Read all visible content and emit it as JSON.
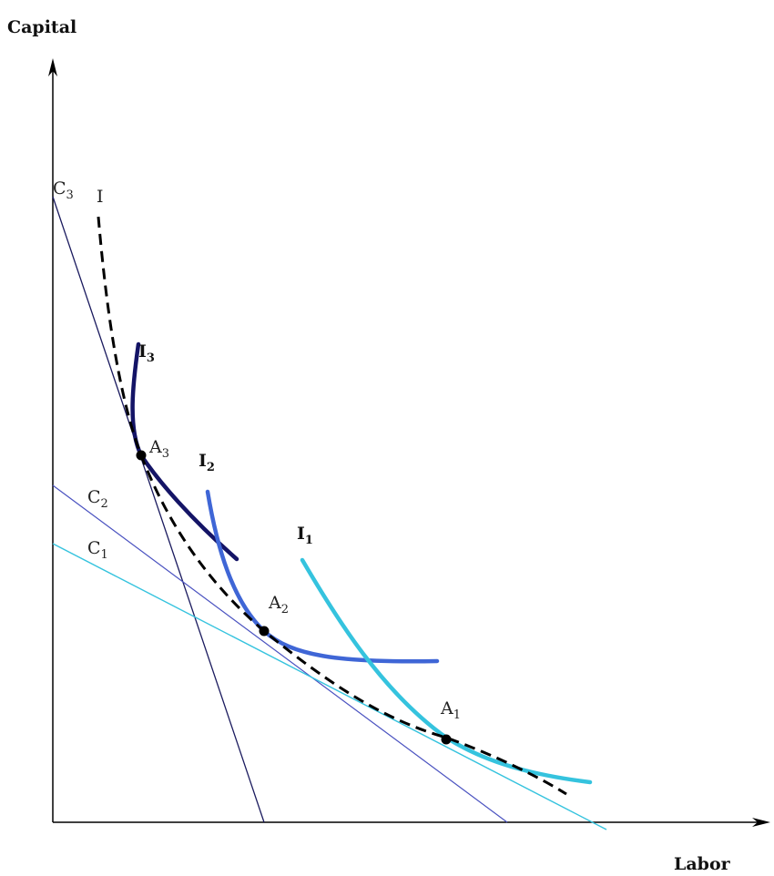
{
  "axes": {
    "y_title": "Capital",
    "x_title": "Labor"
  },
  "isocost_lines": [
    {
      "id": "c3",
      "label": "C",
      "sub": "3",
      "color": "#1a1a5e"
    },
    {
      "id": "c2",
      "label": "C",
      "sub": "2",
      "color": "#4a52c0"
    },
    {
      "id": "c1",
      "label": "C",
      "sub": "1",
      "color": "#35c3de"
    }
  ],
  "isoquants": [
    {
      "id": "i3",
      "label": "I",
      "sub": "3",
      "color": "#141466"
    },
    {
      "id": "i2",
      "label": "I",
      "sub": "2",
      "color": "#3f66d6"
    },
    {
      "id": "i1",
      "label": "I",
      "sub": "1",
      "color": "#35c3de"
    }
  ],
  "envelope": {
    "label": "I",
    "style": "dashed",
    "color": "#000000"
  },
  "points": [
    {
      "id": "a3",
      "label": "A",
      "sub": "3"
    },
    {
      "id": "a2",
      "label": "A",
      "sub": "2"
    },
    {
      "id": "a1",
      "label": "A",
      "sub": "1"
    }
  ]
}
